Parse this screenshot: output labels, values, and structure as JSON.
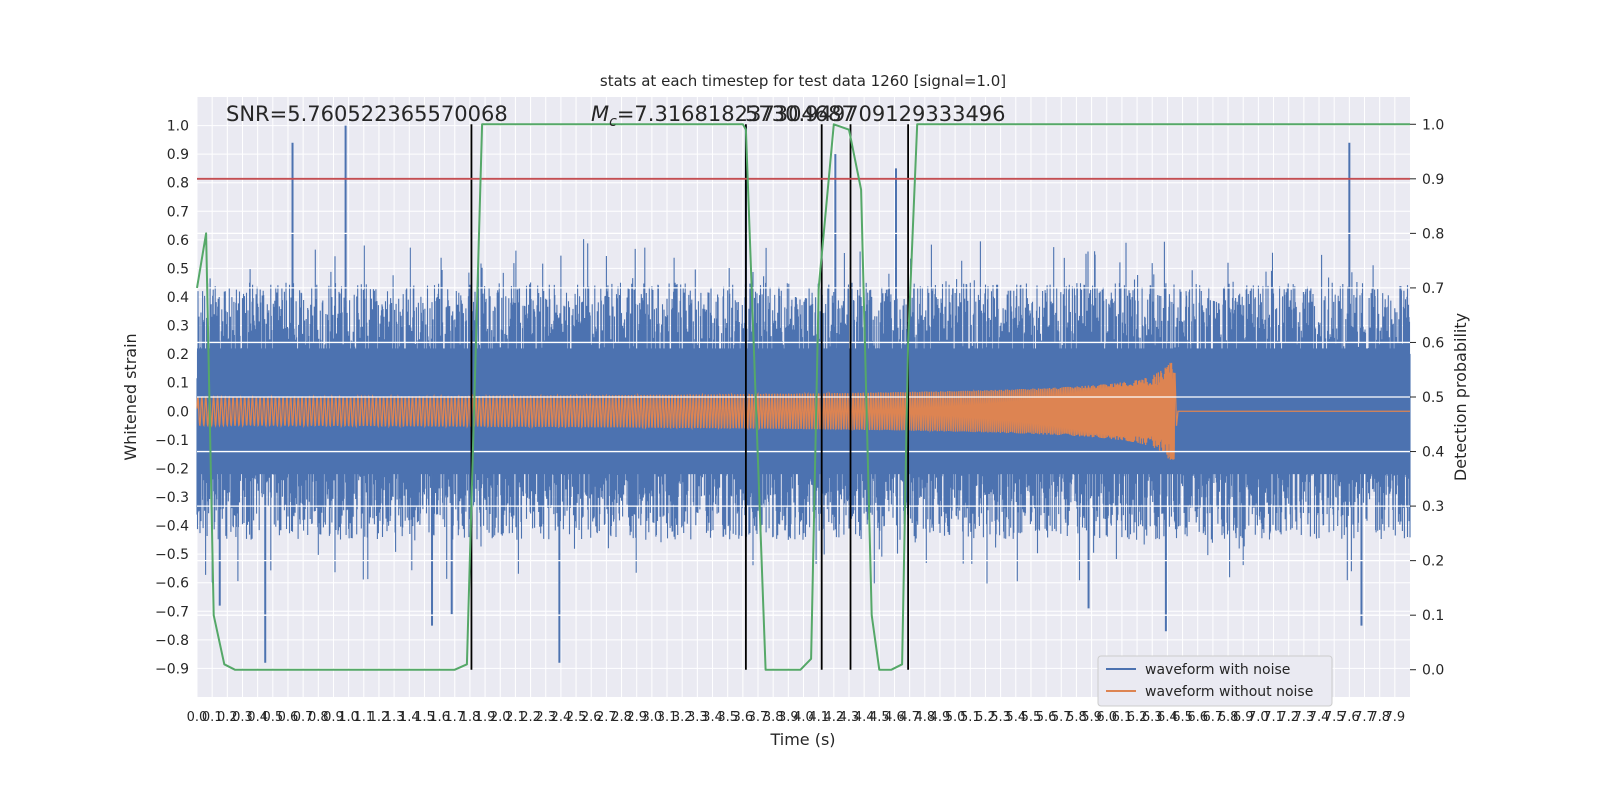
{
  "chart_data": {
    "type": "line",
    "title": "stats at each timestep for test data 1260 [signal=1.0]",
    "xlabel": "Time (s)",
    "ylabel": "Whitened strain",
    "y2label": "Detection probability",
    "xlim": [
      0.0,
      8.0
    ],
    "ylim": [
      -1.0,
      1.1
    ],
    "y2lim": [
      -0.05,
      1.05
    ],
    "grid": true,
    "x_ticks": [
      0.0,
      0.1,
      0.2,
      0.3,
      0.4,
      0.5,
      0.6,
      0.7,
      0.8,
      0.9,
      1.0,
      1.1,
      1.2,
      1.3,
      1.4,
      1.5,
      1.6,
      1.7,
      1.8,
      1.9,
      2.0,
      2.1,
      2.2,
      2.3,
      2.4,
      2.5,
      2.6,
      2.7,
      2.8,
      2.9,
      3.0,
      3.1,
      3.2,
      3.3,
      3.4,
      3.5,
      3.6,
      3.7,
      3.8,
      3.9,
      4.0,
      4.1,
      4.2,
      4.3,
      4.4,
      4.5,
      4.6,
      4.7,
      4.8,
      4.9,
      5.0,
      5.1,
      5.2,
      5.3,
      5.4,
      5.5,
      5.6,
      5.7,
      5.8,
      5.9,
      6.0,
      6.1,
      6.2,
      6.3,
      6.4,
      6.5,
      6.6,
      6.7,
      6.8,
      6.9,
      7.0,
      7.1,
      7.2,
      7.3,
      7.4,
      7.5,
      7.6,
      7.7,
      7.8,
      7.9
    ],
    "y_ticks": [
      1.0,
      0.9,
      0.8,
      0.7,
      0.6,
      0.5,
      0.4,
      0.3,
      0.2,
      0.1,
      0.0,
      -0.1,
      -0.2,
      -0.3,
      -0.4,
      -0.5,
      -0.6,
      -0.7,
      -0.8,
      -0.9
    ],
    "y2_ticks": [
      1.0,
      0.9,
      0.8,
      0.7,
      0.6,
      0.5,
      0.4,
      0.3,
      0.2,
      0.1,
      0.0
    ],
    "annotations": [
      "SNR=5.760522365570068",
      "M_c=7.316818237304687",
      "5730.949709129333496"
    ],
    "legend": {
      "position": "lower-right",
      "entries": [
        "waveform with noise",
        "waveform without noise"
      ]
    },
    "threshold_line": {
      "axis": "y2",
      "value": 0.9,
      "color": "#c44e52"
    },
    "event_markers_x": [
      1.81,
      3.62,
      4.12,
      4.31,
      4.69
    ],
    "series": [
      {
        "name": "waveform with noise",
        "color": "#4c72b0",
        "axis": "y",
        "kind": "noise",
        "envelope_upper": 0.45,
        "envelope_lower": -0.45,
        "peaks": [
          {
            "x": 0.63,
            "y": 0.94
          },
          {
            "x": 0.98,
            "y": 1.0
          },
          {
            "x": 0.45,
            "y": -0.88
          },
          {
            "x": 2.39,
            "y": -0.88
          },
          {
            "x": 3.62,
            "y": 1.0
          },
          {
            "x": 4.21,
            "y": 0.9
          },
          {
            "x": 4.61,
            "y": 0.85
          },
          {
            "x": 7.6,
            "y": 0.94
          },
          {
            "x": 1.55,
            "y": -0.75
          },
          {
            "x": 1.68,
            "y": -0.71
          },
          {
            "x": 6.39,
            "y": -0.77
          },
          {
            "x": 7.68,
            "y": -0.75
          },
          {
            "x": 0.15,
            "y": -0.68
          },
          {
            "x": 5.88,
            "y": -0.69
          }
        ]
      },
      {
        "name": "waveform without noise",
        "color": "#dd8452",
        "axis": "y",
        "kind": "chirp",
        "merger_time": 6.45,
        "peak_amplitude": 0.17
      },
      {
        "name": "detection probability",
        "color": "#55a868",
        "axis": "y2",
        "kind": "line",
        "x": [
          0.0,
          0.06,
          0.11,
          0.18,
          0.25,
          1.7,
          1.78,
          1.88,
          3.6,
          3.62,
          3.75,
          3.98,
          4.05,
          4.1,
          4.2,
          4.3,
          4.38,
          4.45,
          4.5,
          4.58,
          4.65,
          4.69,
          4.75,
          8.0
        ],
        "y": [
          0.7,
          0.8,
          0.1,
          0.01,
          0.0,
          0.0,
          0.01,
          1.0,
          1.0,
          0.99,
          0.0,
          0.0,
          0.02,
          0.7,
          1.0,
          0.99,
          0.88,
          0.1,
          0.0,
          0.0,
          0.01,
          0.6,
          1.0,
          1.0
        ]
      }
    ]
  }
}
